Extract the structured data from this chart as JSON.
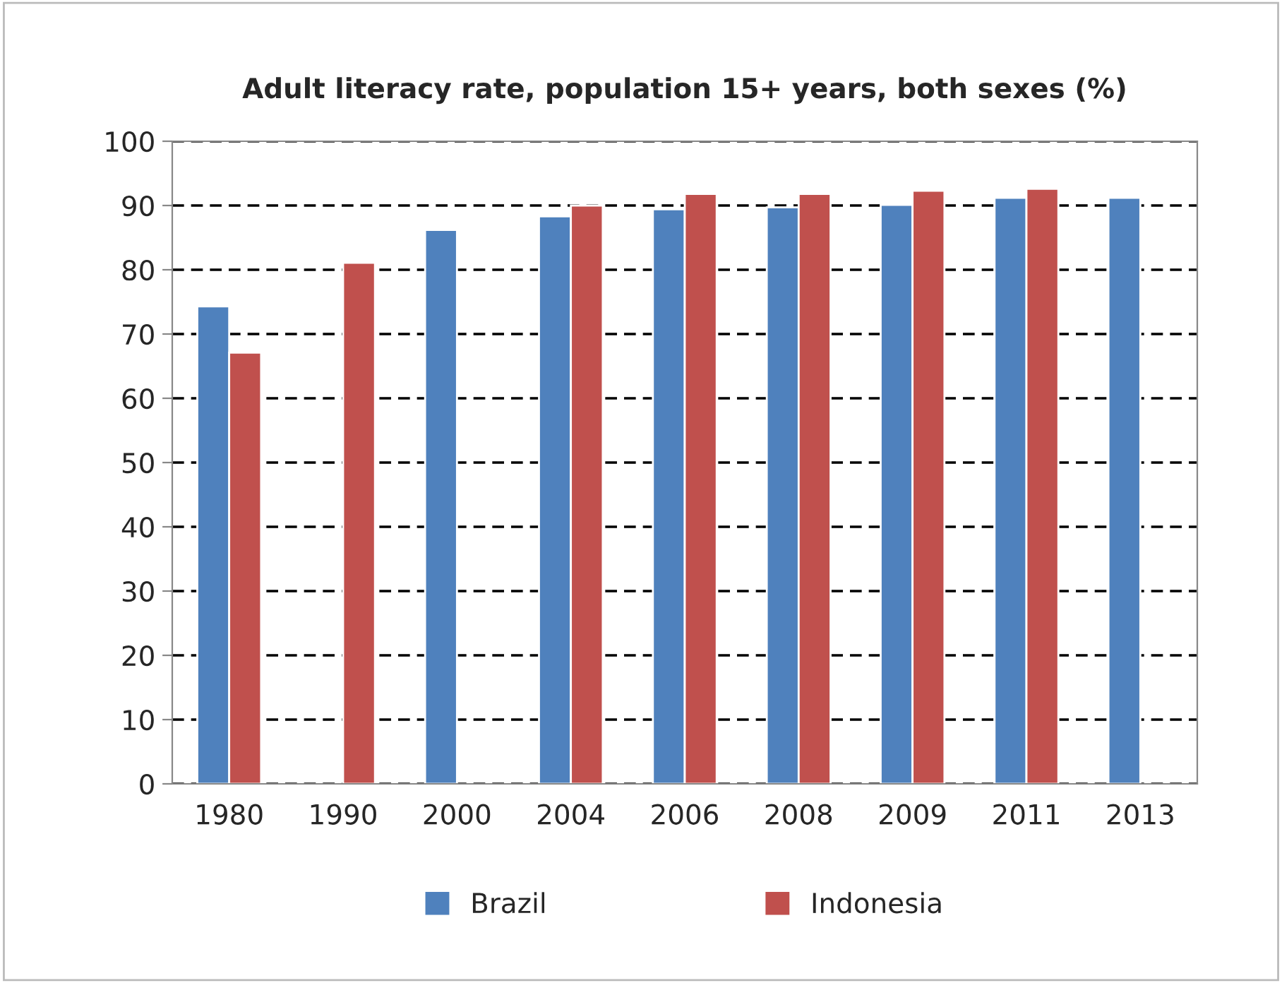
{
  "chart_data": {
    "type": "bar",
    "title": "Adult literacy rate, population 15+ years, both sexes (%)",
    "categories": [
      "1980",
      "1990",
      "2000",
      "2004",
      "2006",
      "2008",
      "2009",
      "2011",
      "2013"
    ],
    "series": [
      {
        "name": "Brazil",
        "color": "#4f81bd",
        "values": [
          74.3,
          null,
          86.2,
          88.3,
          89.4,
          89.7,
          90.1,
          91.2,
          91.2
        ]
      },
      {
        "name": "Indonesia",
        "color": "#c0504d",
        "values": [
          67.1,
          81.1,
          null,
          90.0,
          91.8,
          91.8,
          92.3,
          92.6,
          null
        ]
      }
    ],
    "ylim": [
      0,
      100
    ],
    "yticks": [
      0,
      10,
      20,
      30,
      40,
      50,
      60,
      70,
      80,
      90,
      100
    ],
    "grid": "y",
    "legend": "bottom"
  }
}
